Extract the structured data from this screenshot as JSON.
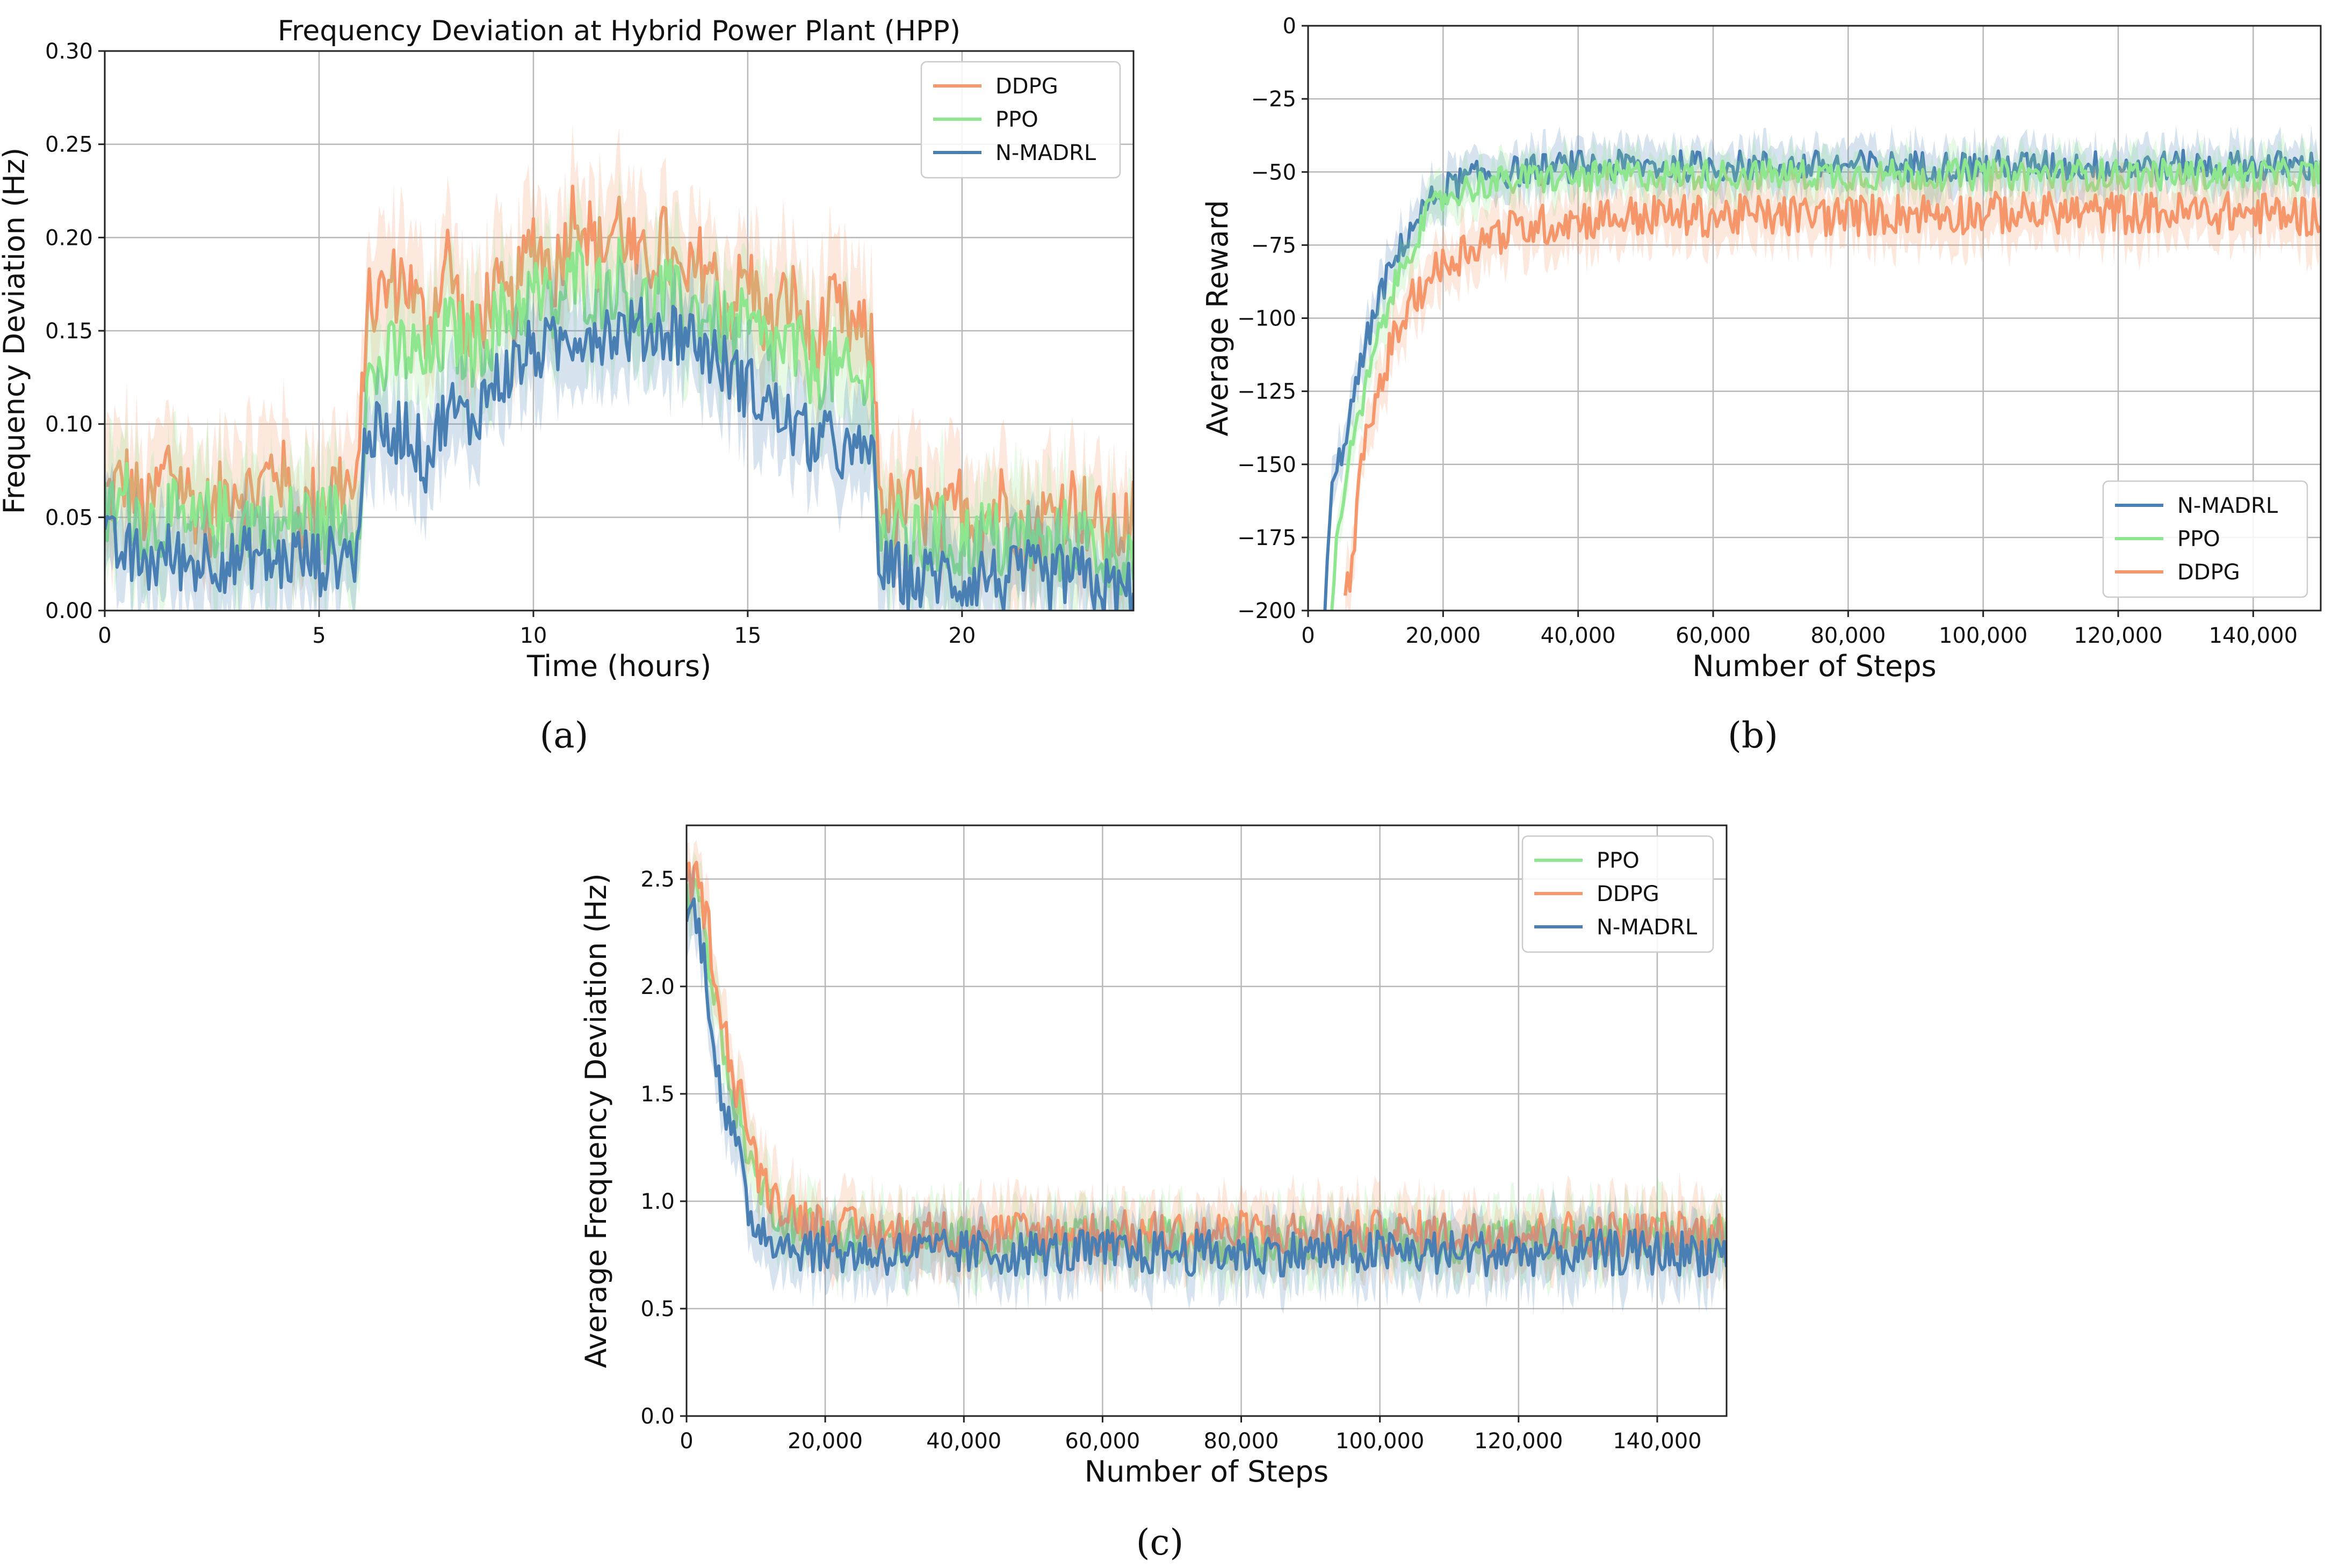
{
  "colors": {
    "DDPG": "#f5966b",
    "PPO": "#8ee68e",
    "N-MADRL": "#4a7fb4",
    "grid": "#b8b8b8",
    "frame": "#222222"
  },
  "chart_data": [
    {
      "id": "a",
      "type": "line",
      "caption": "(a)",
      "title": "Frequency Deviation at Hybrid Power Plant (HPP)",
      "xlabel": "Time (hours)",
      "ylabel": "Frequency Deviation (Hz)",
      "xlim": [
        0,
        24
      ],
      "ylim": [
        0,
        0.3
      ],
      "xticks": [
        0,
        5,
        10,
        15,
        20
      ],
      "xtick_labels": [
        "0",
        "5",
        "10",
        "15",
        "20"
      ],
      "yticks": [
        0,
        0.05,
        0.1,
        0.15,
        0.2,
        0.25,
        0.3
      ],
      "ytick_labels": [
        "0.00",
        "0.05",
        "0.10",
        "0.15",
        "0.20",
        "0.25",
        "0.30"
      ],
      "grid": true,
      "legend_position": "top-right",
      "legend": [
        "DDPG",
        "PPO",
        "N-MADRL"
      ],
      "series": [
        {
          "name": "DDPG",
          "x": [
            0,
            0.5,
            1,
            1.5,
            2,
            2.5,
            3,
            3.5,
            4,
            4.5,
            5,
            5.5,
            5.9,
            6.1,
            6.5,
            7,
            7.5,
            8,
            8.5,
            9,
            9.5,
            10,
            10.5,
            11,
            11.5,
            12,
            12.5,
            13,
            13.5,
            14,
            14.5,
            15,
            15.5,
            16,
            16.5,
            17,
            17.5,
            17.9,
            18.1,
            18.5,
            19,
            19.5,
            20,
            20.5,
            21,
            21.5,
            22,
            22.5,
            23,
            23.5,
            24
          ],
          "y": [
            0.06,
            0.07,
            0.05,
            0.08,
            0.06,
            0.05,
            0.07,
            0.06,
            0.08,
            0.05,
            0.06,
            0.07,
            0.06,
            0.16,
            0.17,
            0.18,
            0.15,
            0.19,
            0.14,
            0.17,
            0.16,
            0.2,
            0.18,
            0.22,
            0.19,
            0.21,
            0.18,
            0.2,
            0.17,
            0.19,
            0.16,
            0.18,
            0.15,
            0.17,
            0.14,
            0.16,
            0.15,
            0.14,
            0.06,
            0.05,
            0.06,
            0.04,
            0.06,
            0.05,
            0.06,
            0.04,
            0.05,
            0.06,
            0.05,
            0.04,
            0.05
          ],
          "band": 0.025
        },
        {
          "name": "PPO",
          "x": [
            0,
            0.5,
            1,
            1.5,
            2,
            2.5,
            3,
            3.5,
            4,
            4.5,
            5,
            5.5,
            5.9,
            6.1,
            6.5,
            7,
            7.5,
            8,
            8.5,
            9,
            9.5,
            10,
            10.5,
            11,
            11.5,
            12,
            12.5,
            13,
            13.5,
            14,
            14.5,
            15,
            15.5,
            16,
            16.5,
            17,
            17.5,
            17.9,
            18.1,
            18.5,
            19,
            19.5,
            20,
            20.5,
            21,
            21.5,
            22,
            22.5,
            23,
            23.5,
            24
          ],
          "y": [
            0.05,
            0.06,
            0.045,
            0.05,
            0.04,
            0.05,
            0.045,
            0.05,
            0.04,
            0.05,
            0.045,
            0.05,
            0.045,
            0.12,
            0.13,
            0.14,
            0.13,
            0.15,
            0.14,
            0.15,
            0.16,
            0.17,
            0.16,
            0.18,
            0.17,
            0.18,
            0.16,
            0.17,
            0.16,
            0.16,
            0.15,
            0.15,
            0.14,
            0.14,
            0.13,
            0.13,
            0.12,
            0.12,
            0.04,
            0.04,
            0.035,
            0.04,
            0.035,
            0.04,
            0.035,
            0.04,
            0.03,
            0.04,
            0.035,
            0.03,
            0.03
          ],
          "band": 0.025
        },
        {
          "name": "N-MADRL",
          "x": [
            0,
            0.5,
            1,
            1.5,
            2,
            2.5,
            3,
            3.5,
            4,
            4.5,
            5,
            5.5,
            5.9,
            6.1,
            6.5,
            7,
            7.5,
            8,
            8.5,
            9,
            9.5,
            10,
            10.5,
            11,
            11.5,
            12,
            12.5,
            13,
            13.5,
            14,
            14.5,
            15,
            15.5,
            16,
            16.5,
            17,
            17.5,
            17.9,
            18.1,
            18.5,
            19,
            19.5,
            20,
            20.5,
            21,
            21.5,
            22,
            22.5,
            23,
            23.5,
            24
          ],
          "y": [
            0.035,
            0.03,
            0.025,
            0.03,
            0.025,
            0.03,
            0.025,
            0.03,
            0.025,
            0.03,
            0.025,
            0.03,
            0.03,
            0.1,
            0.09,
            0.1,
            0.08,
            0.11,
            0.1,
            0.12,
            0.13,
            0.14,
            0.14,
            0.15,
            0.15,
            0.15,
            0.15,
            0.15,
            0.15,
            0.14,
            0.13,
            0.12,
            0.11,
            0.1,
            0.09,
            0.09,
            0.08,
            0.09,
            0.02,
            0.02,
            0.015,
            0.02,
            0.015,
            0.02,
            0.015,
            0.02,
            0.015,
            0.02,
            0.015,
            0.01,
            0.01
          ],
          "band": 0.02
        }
      ]
    },
    {
      "id": "b",
      "type": "line",
      "caption": "(b)",
      "title": "",
      "xlabel": "Number of Steps",
      "ylabel": "Average Reward",
      "xlim": [
        0,
        150000
      ],
      "ylim": [
        -200,
        0
      ],
      "xticks": [
        0,
        20000,
        40000,
        60000,
        80000,
        100000,
        120000,
        140000
      ],
      "xtick_labels": [
        "0",
        "20,000",
        "40,000",
        "60,000",
        "80,000",
        "100,000",
        "120,000",
        "140,000"
      ],
      "yticks": [
        -200,
        -175,
        -150,
        -125,
        -100,
        -75,
        -50,
        -25,
        0
      ],
      "ytick_labels": [
        "−200",
        "−175",
        "−150",
        "−125",
        "−100",
        "−75",
        "−50",
        "−25",
        "0"
      ],
      "grid": true,
      "legend_position": "bottom-right",
      "legend": [
        "N-MADRL",
        "PPO",
        "DDPG"
      ],
      "series": [
        {
          "name": "N-MADRL",
          "x": [
            2500,
            3500,
            5000,
            7000,
            9000,
            11000,
            13000,
            15000,
            17500,
            20000,
            23000,
            26000,
            30000,
            35000,
            40000,
            50000,
            60000,
            70000,
            80000,
            90000,
            100000,
            110000,
            120000,
            130000,
            140000,
            150000
          ],
          "y": [
            -200,
            -160,
            -145,
            -125,
            -105,
            -90,
            -80,
            -70,
            -62,
            -56,
            -53,
            -51,
            -50,
            -49,
            -48,
            -48,
            -48,
            -48,
            -48,
            -48,
            -48,
            -48,
            -48,
            -48,
            -48,
            -48
          ],
          "band": 6
        },
        {
          "name": "PPO",
          "x": [
            3500,
            4500,
            6000,
            8000,
            10000,
            12000,
            14000,
            16000,
            18000,
            20000,
            23000,
            26000,
            30000,
            35000,
            40000,
            50000,
            60000,
            70000,
            80000,
            90000,
            100000,
            110000,
            120000,
            130000,
            140000,
            150000
          ],
          "y": [
            -200,
            -170,
            -150,
            -130,
            -110,
            -95,
            -82,
            -72,
            -64,
            -59,
            -56,
            -54,
            -53,
            -52,
            -52,
            -51,
            -51,
            -51,
            -51,
            -51,
            -51,
            -51,
            -51,
            -51,
            -51,
            -51
          ],
          "band": 6
        },
        {
          "name": "DDPG",
          "x": [
            5500,
            6500,
            8000,
            10000,
            12000,
            14000,
            16000,
            18000,
            20000,
            23000,
            26000,
            30000,
            35000,
            40000,
            50000,
            60000,
            70000,
            80000,
            90000,
            100000,
            110000,
            120000,
            130000,
            140000,
            150000
          ],
          "y": [
            -200,
            -180,
            -150,
            -128,
            -112,
            -100,
            -92,
            -86,
            -82,
            -77,
            -73,
            -70,
            -68,
            -66,
            -65,
            -65,
            -65,
            -65,
            -64,
            -64,
            -64,
            -64,
            -64,
            -64,
            -65
          ],
          "band": 8
        }
      ]
    },
    {
      "id": "c",
      "type": "line",
      "caption": "(c)",
      "title": "",
      "xlabel": "Number of Steps",
      "ylabel": "Average Frequency Deviation (Hz)",
      "xlim": [
        0,
        150000
      ],
      "ylim": [
        0,
        2.75
      ],
      "xticks": [
        0,
        20000,
        40000,
        60000,
        80000,
        100000,
        120000,
        140000
      ],
      "xtick_labels": [
        "0",
        "20,000",
        "40,000",
        "60,000",
        "80,000",
        "100,000",
        "120,000",
        "140,000"
      ],
      "yticks": [
        0,
        0.5,
        1,
        1.5,
        2,
        2.5
      ],
      "ytick_labels": [
        "0.0",
        "0.5",
        "1.0",
        "1.5",
        "2.0",
        "2.5"
      ],
      "grid": true,
      "legend_position": "top-right",
      "legend": [
        "PPO",
        "DDPG",
        "N-MADRL"
      ],
      "series": [
        {
          "name": "PPO",
          "x": [
            0,
            1000,
            2000,
            3000,
            4000,
            5000,
            6000,
            7000,
            8000,
            9000,
            10000,
            12000,
            14000,
            17000,
            20000,
            25000,
            30000,
            40000,
            50000,
            60000,
            70000,
            80000,
            90000,
            100000,
            110000,
            120000,
            130000,
            140000,
            150000
          ],
          "y": [
            2.4,
            2.45,
            2.4,
            2.2,
            1.95,
            1.75,
            1.55,
            1.45,
            1.4,
            1.2,
            1.1,
            1.0,
            0.93,
            0.88,
            0.85,
            0.83,
            0.82,
            0.82,
            0.82,
            0.82,
            0.82,
            0.82,
            0.82,
            0.82,
            0.82,
            0.82,
            0.82,
            0.82,
            0.82
          ],
          "band": 0.12
        },
        {
          "name": "DDPG",
          "x": [
            0,
            1000,
            2000,
            3000,
            4000,
            5000,
            6000,
            7000,
            8000,
            9000,
            10000,
            12000,
            14000,
            17000,
            20000,
            25000,
            30000,
            40000,
            50000,
            60000,
            70000,
            80000,
            90000,
            100000,
            110000,
            120000,
            130000,
            140000,
            150000
          ],
          "y": [
            2.45,
            2.5,
            2.45,
            2.3,
            2.1,
            1.9,
            1.7,
            1.55,
            1.5,
            1.3,
            1.15,
            1.05,
            0.98,
            0.92,
            0.88,
            0.86,
            0.85,
            0.85,
            0.85,
            0.85,
            0.85,
            0.85,
            0.85,
            0.85,
            0.85,
            0.85,
            0.85,
            0.85,
            0.85
          ],
          "band": 0.12
        },
        {
          "name": "N-MADRL",
          "x": [
            0,
            1000,
            2000,
            3000,
            4000,
            5000,
            6000,
            7000,
            8000,
            9000,
            10000,
            12000,
            14000,
            17000,
            20000,
            25000,
            30000,
            40000,
            50000,
            60000,
            70000,
            80000,
            90000,
            100000,
            110000,
            120000,
            130000,
            140000,
            150000
          ],
          "y": [
            2.3,
            2.35,
            2.25,
            2.0,
            1.75,
            1.5,
            1.35,
            1.3,
            1.1,
            0.95,
            0.9,
            0.85,
            0.8,
            0.78,
            0.77,
            0.76,
            0.76,
            0.76,
            0.76,
            0.76,
            0.76,
            0.76,
            0.76,
            0.76,
            0.76,
            0.76,
            0.76,
            0.76,
            0.76
          ],
          "band": 0.12
        }
      ]
    }
  ]
}
